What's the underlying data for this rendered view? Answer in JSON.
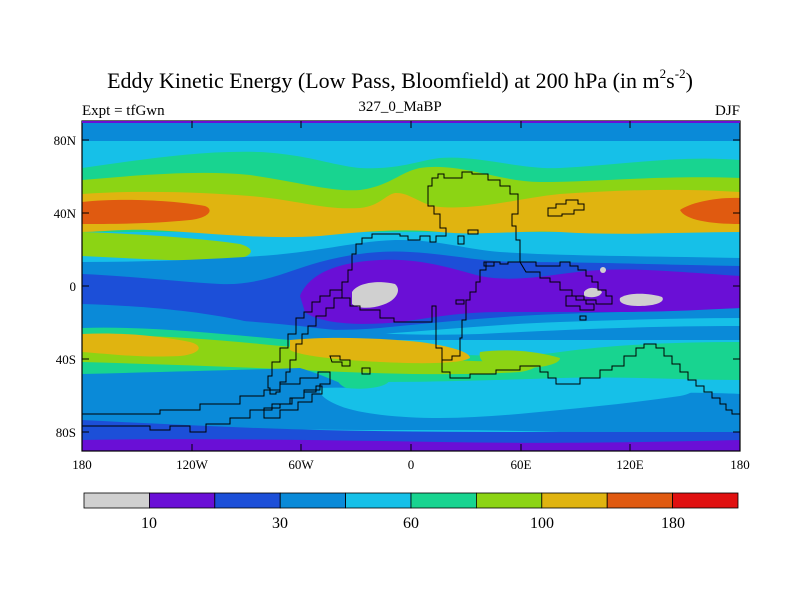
{
  "title": {
    "prefix": "Eddy Kinetic Energy (Low Pass, Bloomfield) at 200 hPa (in m",
    "sup1": "2",
    "mid": "s",
    "sup2": "-2",
    "suffix": ")"
  },
  "left_label": "Expt = tfGwn",
  "center_label": "327_0_MaBP",
  "right_label": "DJF",
  "lat_ticks": [
    "80N",
    "40N",
    "0",
    "40S",
    "80S"
  ],
  "lon_ticks": [
    "180",
    "120W",
    "60W",
    "0",
    "60E",
    "120E",
    "180"
  ],
  "colorbar": {
    "colors": [
      "#d0d0d0",
      "#6a0fd6",
      "#1c4fd8",
      "#0a8ad8",
      "#16c0e8",
      "#18d490",
      "#8cd414",
      "#e0b410",
      "#e05a10",
      "#e01010"
    ],
    "labels": [
      "10",
      "30",
      "60",
      "100",
      "180"
    ]
  },
  "palette": {
    "gray": "#d0d0d0",
    "purple": "#6a0fd6",
    "blue": "#1c4fd8",
    "mblue": "#0a8ad8",
    "cyan": "#16c0e8",
    "teal": "#18d490",
    "green": "#8cd414",
    "yellow": "#e0b410",
    "orange": "#e05a10",
    "red": "#e01010"
  }
}
